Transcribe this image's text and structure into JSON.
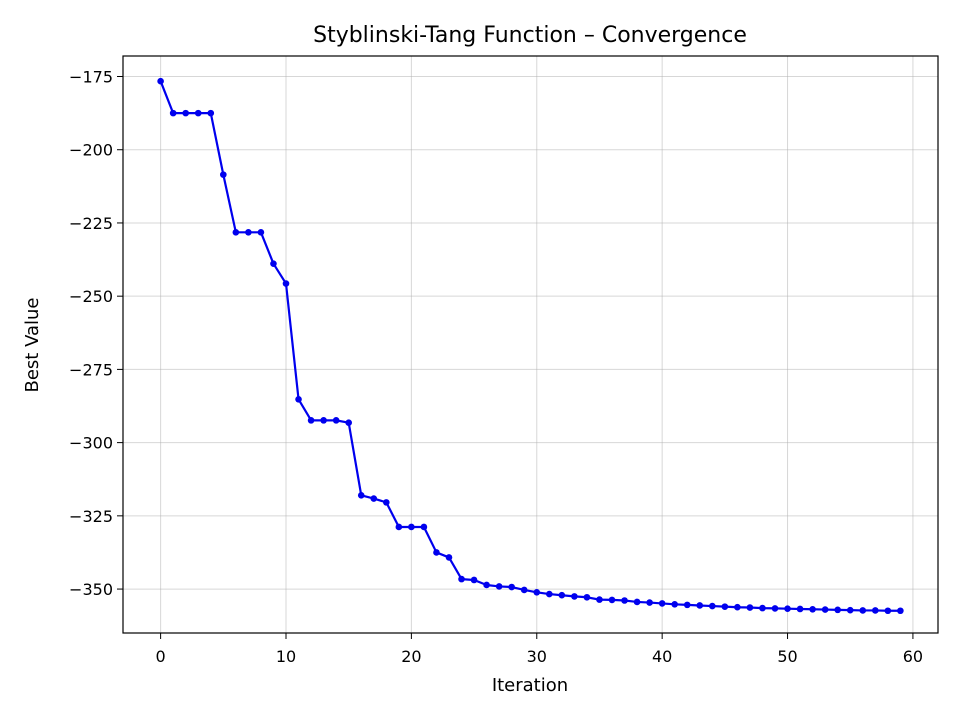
{
  "chart_data": {
    "type": "line",
    "title": "Styblinski-Tang Function – Convergence",
    "xlabel": "Iteration",
    "ylabel": "Best Value",
    "xlim": [
      -3,
      62
    ],
    "ylim": [
      -365,
      -168
    ],
    "xticks": [
      0,
      10,
      20,
      30,
      40,
      50,
      60
    ],
    "yticks": [
      -175,
      -200,
      -225,
      -250,
      -275,
      -300,
      -325,
      -350
    ],
    "xtick_labels": [
      "0",
      "10",
      "20",
      "30",
      "40",
      "50",
      "60"
    ],
    "ytick_labels": [
      "−175",
      "−200",
      "−225",
      "−250",
      "−275",
      "−300",
      "−325",
      "−350"
    ],
    "grid": true,
    "series": [
      {
        "color": "#0000ee",
        "marker": "circle",
        "x": [
          0,
          1,
          2,
          3,
          4,
          5,
          6,
          7,
          8,
          9,
          10,
          11,
          12,
          13,
          14,
          15,
          16,
          17,
          18,
          19,
          20,
          21,
          22,
          23,
          24,
          25,
          26,
          27,
          28,
          29,
          30,
          31,
          32,
          33,
          34,
          35,
          36,
          37,
          38,
          39,
          40,
          41,
          42,
          43,
          44,
          45,
          46,
          47,
          48,
          49,
          50,
          51,
          52,
          53,
          54,
          55,
          56,
          57,
          58,
          59
        ],
        "y": [
          -176.6,
          -187.5,
          -187.5,
          -187.5,
          -187.5,
          -208.5,
          -228.2,
          -228.2,
          -228.2,
          -238.9,
          -245.7,
          -285.2,
          -292.4,
          -292.4,
          -292.4,
          -293.2,
          -318.0,
          -319.1,
          -320.4,
          -328.8,
          -328.8,
          -328.8,
          -337.5,
          -339.2,
          -346.6,
          -346.9,
          -348.6,
          -349.1,
          -349.3,
          -350.3,
          -351.1,
          -351.7,
          -352.1,
          -352.5,
          -352.8,
          -353.6,
          -353.7,
          -353.9,
          -354.4,
          -354.6,
          -354.9,
          -355.2,
          -355.4,
          -355.6,
          -355.8,
          -356.0,
          -356.2,
          -356.3,
          -356.5,
          -356.6,
          -356.7,
          -356.8,
          -356.9,
          -357.0,
          -357.1,
          -357.2,
          -357.3,
          -357.3,
          -357.4,
          -357.4
        ]
      }
    ]
  }
}
